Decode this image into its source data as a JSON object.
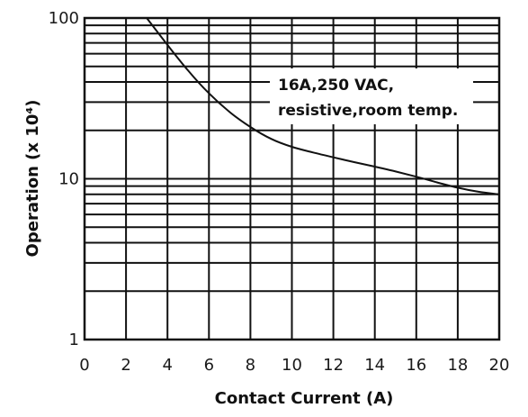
{
  "chart_data": {
    "type": "line",
    "title": "",
    "xlabel": "Contact Current (A)",
    "ylabel": "Operation (x 10⁴)",
    "xlim": [
      0,
      20
    ],
    "ylim": [
      1,
      100
    ],
    "yscale": "log",
    "grid": true,
    "x_ticks": [
      "0",
      "2",
      "4",
      "6",
      "8",
      "10",
      "12",
      "14",
      "16",
      "18",
      "20"
    ],
    "y_ticks": [
      "1",
      "10",
      "100"
    ],
    "annotation": [
      "16A,250 VAC,",
      "resistive,room temp."
    ],
    "series": [
      {
        "x": [
          3,
          4,
          5,
          6,
          7,
          8,
          9,
          10,
          11,
          12,
          13,
          14,
          15,
          16,
          17,
          18,
          19,
          20
        ],
        "y": [
          100,
          68,
          47,
          34,
          26,
          21,
          17.7,
          15.8,
          14.6,
          13.6,
          12.7,
          11.9,
          11.1,
          10.3,
          9.5,
          8.8,
          8.3,
          8.0
        ]
      }
    ]
  }
}
